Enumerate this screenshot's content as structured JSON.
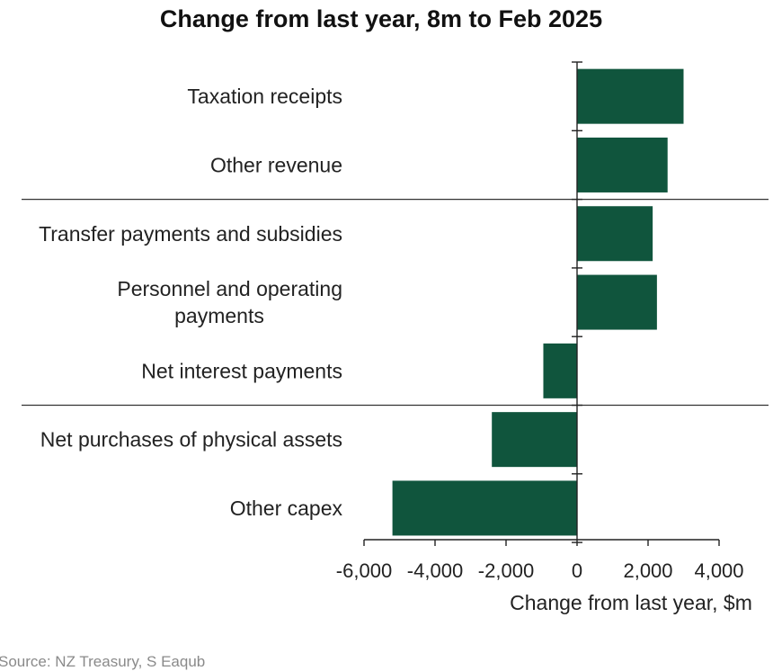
{
  "chart_data": {
    "type": "bar",
    "orientation": "horizontal",
    "title": "Change from last year, 8m to Feb 2025",
    "xlabel": "Change from last year, $m",
    "ylabel": "",
    "categories": [
      "Taxation receipts",
      "Other revenue",
      "Transfer payments and subsidies",
      "Personnel and operating payments",
      "Net interest payments",
      "Net purchases of physical assets",
      "Other capex"
    ],
    "category_label_lines": [
      [
        "Taxation receipts"
      ],
      [
        "Other revenue"
      ],
      [
        "Transfer payments and subsidies"
      ],
      [
        "Personnel and operating",
        "payments"
      ],
      [
        "Net interest payments"
      ],
      [
        "Net purchases of physical assets"
      ],
      [
        "Other capex"
      ]
    ],
    "values": [
      3000,
      2550,
      2130,
      2250,
      -950,
      -2400,
      -5200
    ],
    "xlim": [
      -6000,
      4000
    ],
    "xticks": [
      "-6,000",
      "-4,000",
      "-2,000",
      "0",
      "2,000",
      "4,000"
    ],
    "xtick_values": [
      -6000,
      -4000,
      -2000,
      0,
      2000,
      4000
    ],
    "group_separators_after": [
      1,
      4
    ],
    "grid": false,
    "legend": "none",
    "bar_color": "#10553d"
  },
  "source": "Source: NZ Treasury, S Eaqub"
}
